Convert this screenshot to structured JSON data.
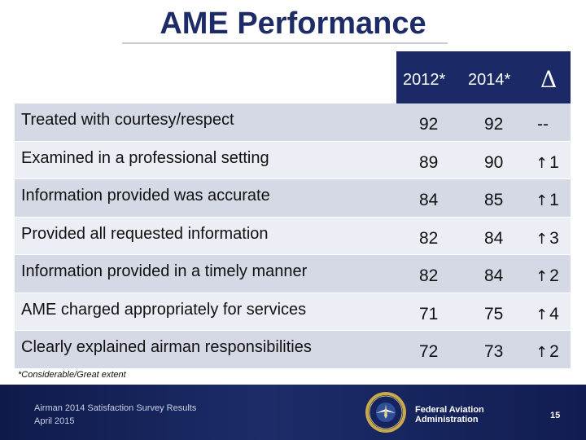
{
  "slide": {
    "title": "AME Performance"
  },
  "table": {
    "headers": {
      "col_2012": "2012*",
      "col_2014": "2014*",
      "col_delta": "Δ"
    },
    "rows": [
      {
        "label": "Treated with courtesy/respect",
        "v2012": "92",
        "v2014": "92",
        "arrow": "",
        "delta": "--"
      },
      {
        "label": "Examined in a professional setting",
        "v2012": "89",
        "v2014": "90",
        "arrow": "↑",
        "delta": "1"
      },
      {
        "label": "Information provided was accurate",
        "v2012": "84",
        "v2014": "85",
        "arrow": "↑",
        "delta": "1"
      },
      {
        "label": "Provided all requested information",
        "v2012": "82",
        "v2014": "84",
        "arrow": "↑",
        "delta": "3"
      },
      {
        "label": "Information provided in a timely manner",
        "v2012": "82",
        "v2014": "84",
        "arrow": "↑",
        "delta": "2"
      },
      {
        "label": "AME charged appropriately for services",
        "v2012": "71",
        "v2014": "75",
        "arrow": "↑",
        "delta": "4"
      },
      {
        "label": "Clearly explained airman responsibilities",
        "v2012": "72",
        "v2014": "73",
        "arrow": "↑",
        "delta": "2"
      }
    ]
  },
  "footnote": "*Considerable/Great extent",
  "footer": {
    "line1": "Airman 2014 Satisfaction Survey Results",
    "line2": "April 2015",
    "org_line1": "Federal Aviation",
    "org_line2": "Administration",
    "page_number": "15",
    "seal_icon": "faa-seal-icon"
  },
  "colors": {
    "navy": "#1b2a66",
    "row_dark": "#d5d9e6",
    "row_light": "#eceef5"
  }
}
